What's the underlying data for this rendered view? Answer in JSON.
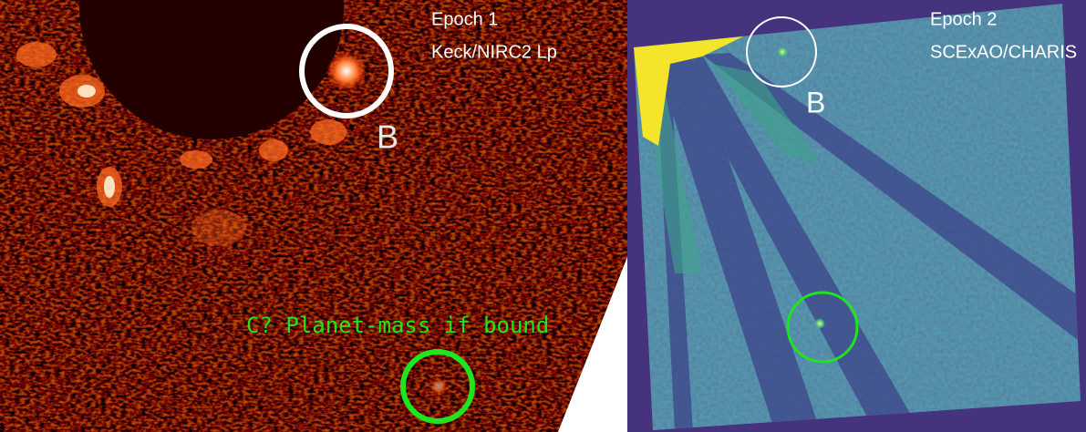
{
  "panels": [
    {
      "epoch": "Epoch 1",
      "instrument": "Keck/NIRC2 Lp",
      "labels": [
        "B",
        "C? Planet-mass if bound"
      ]
    },
    {
      "epoch": "Epoch 2",
      "instrument": "SCExAO/CHARIS",
      "labels": [
        "B"
      ]
    }
  ]
}
